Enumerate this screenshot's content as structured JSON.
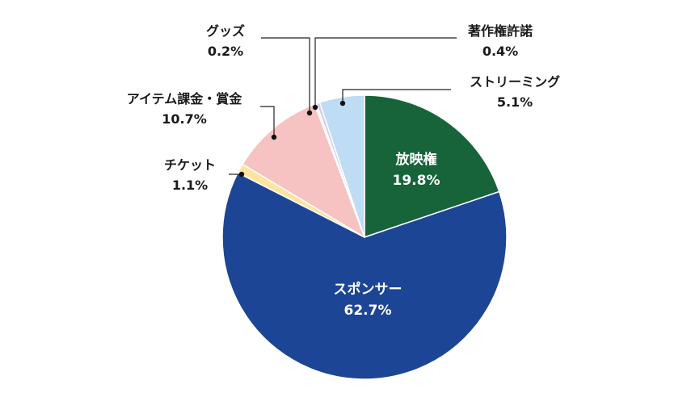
{
  "chart_data": {
    "type": "pie",
    "slices": [
      {
        "label": "放映権",
        "value": 19.8,
        "value_label": "19.8%",
        "color": "#17643a",
        "label_position": "inside"
      },
      {
        "label": "スポンサー",
        "value": 62.7,
        "value_label": "62.7%",
        "color": "#1c4595",
        "label_position": "inside"
      },
      {
        "label": "チケット",
        "value": 1.1,
        "value_label": "1.1%",
        "color": "#fde49f",
        "label_position": "outside"
      },
      {
        "label": "アイテム課金・賞金",
        "value": 10.7,
        "value_label": "10.7%",
        "color": "#f6c3c2",
        "label_position": "outside"
      },
      {
        "label": "グッズ",
        "value": 0.2,
        "value_label": "0.2%",
        "color": "#d9efc6",
        "label_position": "outside"
      },
      {
        "label": "著作権許諾",
        "value": 0.4,
        "value_label": "0.4%",
        "color": "#dccbe8",
        "label_position": "outside"
      },
      {
        "label": "ストリーミング",
        "value": 5.1,
        "value_label": "5.1%",
        "color": "#bedcf3",
        "label_position": "outside"
      }
    ],
    "start": "12 o'clock",
    "direction": "clockwise",
    "legend": "none",
    "title": ""
  }
}
